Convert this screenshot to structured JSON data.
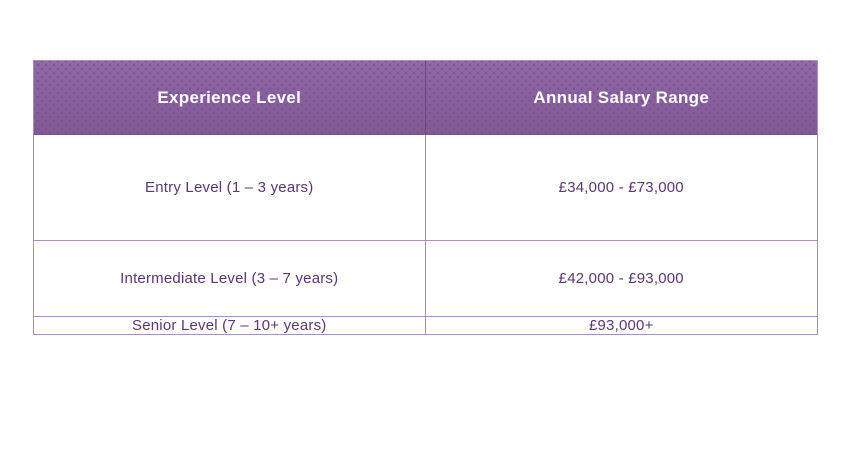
{
  "colors": {
    "header_bg": "#8a61a0",
    "header_dot": "#7a5390",
    "header_text": "#ffffff",
    "header_divider": "#6a4680",
    "header_bottom": "#7b5591",
    "body_text": "#5c3677",
    "border": "#ab8fc0"
  },
  "table": {
    "headers": [
      "Experience Level",
      "Annual Salary Range"
    ],
    "rows": [
      {
        "experience": "Entry Level (1 – 3 years)",
        "salary": "£34,000 - £73,000"
      },
      {
        "experience": "Intermediate Level (3 – 7 years)",
        "salary": "£42,000 - £93,000"
      },
      {
        "experience": "Senior Level (7 – 10+ years)",
        "salary": "£93,000+"
      }
    ]
  },
  "chart_data": {
    "type": "table",
    "title": "",
    "columns": [
      "Experience Level",
      "Annual Salary Range"
    ],
    "rows": [
      [
        "Entry Level (1 – 3 years)",
        "£34,000 - £73,000"
      ],
      [
        "Intermediate Level (3 – 7 years)",
        "£42,000 - £93,000"
      ],
      [
        "Senior Level (7 – 10+ years)",
        "£93,000+"
      ]
    ],
    "layout_hints": {
      "header_style": "purple textured band, white bold centered text",
      "body_style": "white rows, purple centered text, light purple 1px grid borders",
      "column_split": "50/50"
    }
  }
}
